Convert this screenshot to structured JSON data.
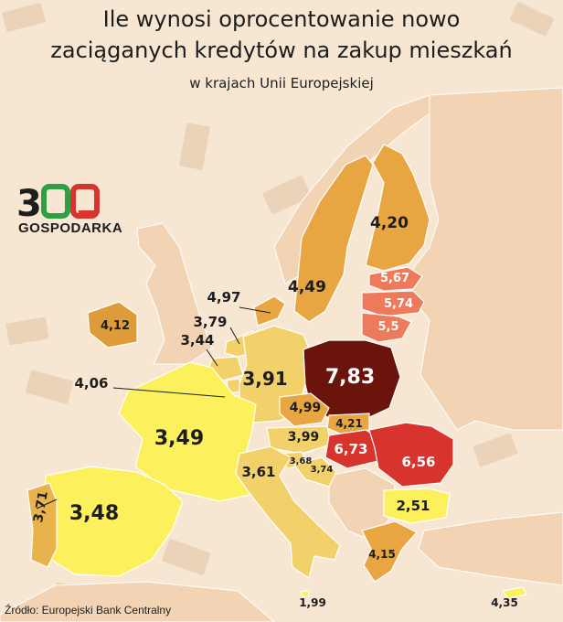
{
  "title_line1": "Ile wynosi oprocentowanie nowo",
  "title_line2": "zaciąganych kredytów na zakup mieszkań",
  "subtitle": "w krajach Unii Europejskiej",
  "logo": {
    "digit1": "3",
    "digit2": "0",
    "digit3": "0",
    "text": "GOSPODARKA"
  },
  "source": "Źródło: Europejski Bank Centralny",
  "colors": {
    "background": "#f6e6d2",
    "non_eu_land": "#f2d3b3",
    "sea": "#f6e6d2",
    "yellow": "#fcf15c",
    "light_orange": "#f2d16a",
    "orange": "#e8b24c",
    "dark_orange": "#dd9b3a",
    "brown": "#c78828",
    "coral": "#ed7a5a",
    "red": "#d6342c",
    "dark_red": "#6a140c",
    "logo_green": "#2f9e44",
    "logo_red": "#d6342c"
  },
  "countries": [
    {
      "name": "Finland",
      "value": "4,20"
    },
    {
      "name": "Sweden",
      "value": "4,49"
    },
    {
      "name": "Estonia",
      "value": "5,67"
    },
    {
      "name": "Latvia",
      "value": "5,74"
    },
    {
      "name": "Lithuania",
      "value": "5,5"
    },
    {
      "name": "Denmark",
      "value": "4,97"
    },
    {
      "name": "Ireland",
      "value": "4,12"
    },
    {
      "name": "Netherlands",
      "value": "3,79"
    },
    {
      "name": "Belgium",
      "value": "3,44"
    },
    {
      "name": "Luxembourg",
      "value": "4,06"
    },
    {
      "name": "Germany",
      "value": "3,91"
    },
    {
      "name": "Poland",
      "value": "7,83"
    },
    {
      "name": "Czechia",
      "value": "4,99"
    },
    {
      "name": "Slovakia",
      "value": "4,21"
    },
    {
      "name": "Austria",
      "value": "3,99"
    },
    {
      "name": "Hungary",
      "value": "6,73"
    },
    {
      "name": "Romania",
      "value": "6,56"
    },
    {
      "name": "Slovenia",
      "value": "3,68"
    },
    {
      "name": "Croatia",
      "value": "3,74"
    },
    {
      "name": "France",
      "value": "3,49"
    },
    {
      "name": "Italy",
      "value": "3,61"
    },
    {
      "name": "Spain",
      "value": "3,48"
    },
    {
      "name": "Portugal",
      "value": "3,71"
    },
    {
      "name": "Bulgaria",
      "value": "2,51"
    },
    {
      "name": "Greece",
      "value": "4,15"
    },
    {
      "name": "Malta",
      "value": "1,99"
    },
    {
      "name": "Cyprus",
      "value": "4,35"
    }
  ]
}
